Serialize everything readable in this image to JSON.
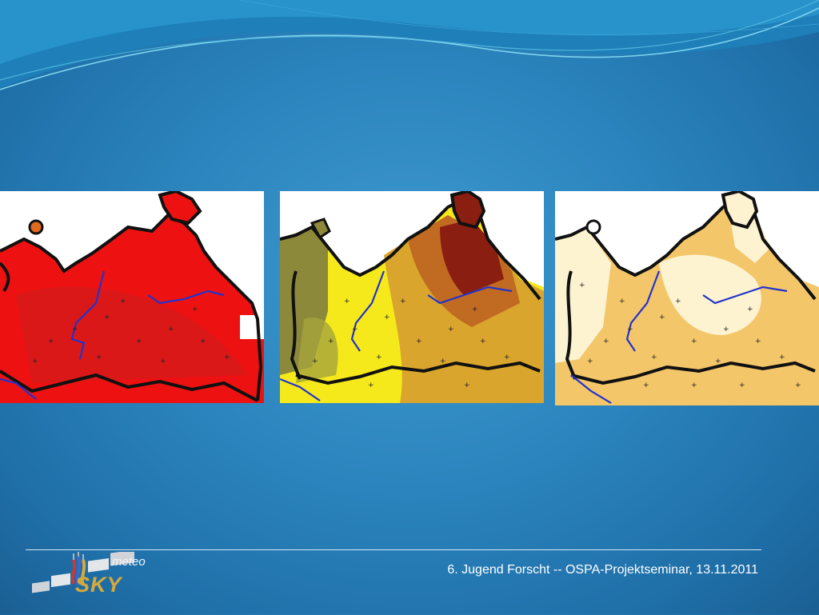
{
  "footer": {
    "caption": "6. Jugend Forscht -- OSPA-Projektseminar, 13.11.2011"
  },
  "logo": {
    "word_top": "meteo",
    "word_bottom": "SKY"
  },
  "maps": [
    {
      "name": "map-temperature-red",
      "scheme": [
        "#ee1111",
        "#d41a1a",
        "#ffffff"
      ]
    },
    {
      "name": "map-yellow-brown",
      "scheme": [
        "#f5e91b",
        "#d9a52c",
        "#b85f1d",
        "#8c8a3a"
      ]
    },
    {
      "name": "map-cream-orange",
      "scheme": [
        "#fdf3d0",
        "#f3c66a",
        "#ffffff"
      ]
    }
  ],
  "colors": {
    "border": "#111111",
    "river": "#2233cc",
    "background_blue": "#2b84bd"
  }
}
